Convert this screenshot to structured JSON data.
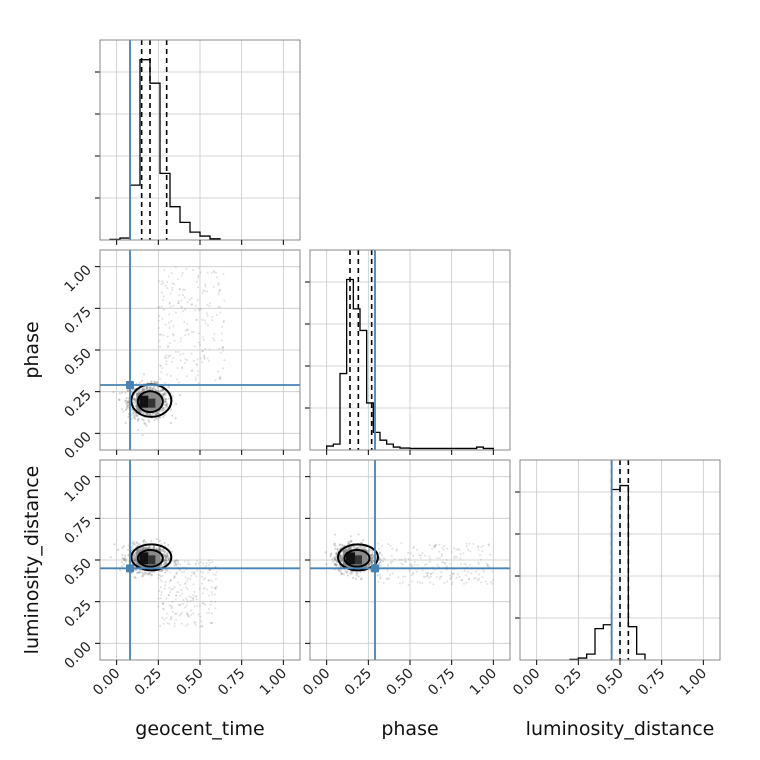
{
  "chart_data": {
    "type": "corner",
    "parameters": [
      "geocent_time",
      "phase",
      "luminosity_distance"
    ],
    "axis_labels": {
      "x": [
        "geocent_time",
        "phase",
        "luminosity_distance"
      ],
      "y": [
        "phase",
        "luminosity_distance"
      ]
    },
    "tick_values": [
      0.0,
      0.25,
      0.5,
      0.75,
      1.0
    ],
    "tick_labels": [
      "0.00",
      "0.25",
      "0.50",
      "0.75",
      "1.00"
    ],
    "axis_range": [
      -0.1,
      1.1
    ],
    "grid": true,
    "truths": {
      "geocent_time": 0.08,
      "phase": 0.29,
      "luminosity_distance": 0.45
    },
    "truth_color": "#4682b4",
    "histograms": {
      "geocent_time": {
        "bin_edges": [
          -0.04,
          0.02,
          0.08,
          0.14,
          0.2,
          0.26,
          0.32,
          0.38,
          0.44,
          0.5,
          0.56,
          0.62
        ],
        "relative_counts": [
          0.003,
          0.01,
          0.28,
          0.92,
          0.8,
          0.34,
          0.17,
          0.09,
          0.04,
          0.02,
          0.006
        ],
        "quantile_lines": [
          0.15,
          0.2,
          0.3
        ]
      },
      "phase": {
        "bin_edges": [
          0.0,
          0.04,
          0.08,
          0.12,
          0.16,
          0.2,
          0.24,
          0.28,
          0.32,
          0.36,
          0.4,
          0.44,
          0.5,
          0.6,
          0.7,
          0.8,
          0.9,
          0.94,
          1.0
        ],
        "relative_counts": [
          0.02,
          0.03,
          0.39,
          0.87,
          0.72,
          0.61,
          0.24,
          0.09,
          0.05,
          0.03,
          0.015,
          0.01,
          0.008,
          0.008,
          0.008,
          0.008,
          0.015,
          0.008
        ],
        "quantile_lines": [
          0.14,
          0.19,
          0.27
        ]
      },
      "luminosity_distance": {
        "bin_edges": [
          0.2,
          0.25,
          0.3,
          0.35,
          0.4,
          0.45,
          0.5,
          0.55,
          0.6,
          0.65
        ],
        "relative_counts": [
          0.003,
          0.01,
          0.03,
          0.16,
          0.18,
          0.87,
          0.89,
          0.17,
          0.03
        ],
        "quantile_lines": [
          0.45,
          0.5,
          0.55
        ]
      }
    },
    "posterior_2d": {
      "geocent_time_vs_phase": {
        "peak": [
          0.19,
          0.19
        ],
        "spread": [
          0.06,
          0.05
        ],
        "outlier_tail": {
          "x_range": [
            0.25,
            0.65
          ],
          "y_range": [
            0.3,
            1.0
          ]
        }
      },
      "geocent_time_vs_luminosity_distance": {
        "peak": [
          0.19,
          0.51
        ],
        "spread": [
          0.06,
          0.04
        ],
        "outlier_tail": {
          "x_range": [
            0.25,
            0.6
          ],
          "y_range": [
            0.1,
            0.5
          ]
        }
      },
      "phase_vs_luminosity_distance": {
        "peak": [
          0.17,
          0.51
        ],
        "spread": [
          0.06,
          0.04
        ],
        "outlier_tail": {
          "x_range": [
            0.3,
            1.0
          ],
          "y_range": [
            0.35,
            0.6
          ]
        }
      }
    }
  }
}
